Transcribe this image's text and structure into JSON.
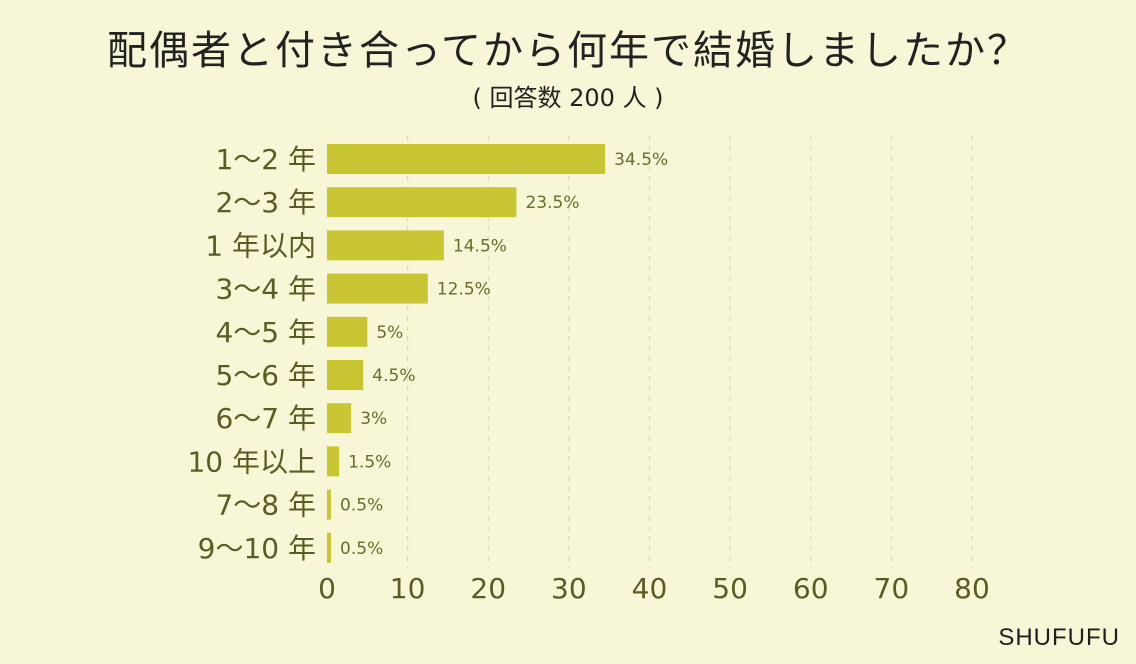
{
  "header": {
    "title": "配偶者と付き合ってから何年で結婚しましたか？",
    "subtitle": "( 回答数 200 人 )",
    "brand": "SHUFUFU"
  },
  "colors": {
    "background": "#f7f7d7",
    "bar": "#c9c633",
    "text": "#5d5b21",
    "gridline": "#d6d6c0"
  },
  "chart_data": {
    "type": "bar",
    "orientation": "horizontal",
    "categories": [
      "1～2 年",
      "2～3 年",
      "1 年以内",
      "3～4 年",
      "4～5 年",
      "5～6 年",
      "6～7 年",
      "10 年以上",
      "7～8 年",
      "9～10 年"
    ],
    "values": [
      34.5,
      23.5,
      14.5,
      12.5,
      5,
      4.5,
      3,
      1.5,
      0.5,
      0.5
    ],
    "value_labels": [
      "34.5%",
      "23.5%",
      "14.5%",
      "12.5%",
      "5%",
      "4.5%",
      "3%",
      "1.5%",
      "0.5%",
      "0.5%"
    ],
    "xlim": [
      0,
      80
    ],
    "xticks": [
      0,
      10,
      20,
      30,
      40,
      50,
      60,
      70,
      80
    ],
    "grid": true
  }
}
